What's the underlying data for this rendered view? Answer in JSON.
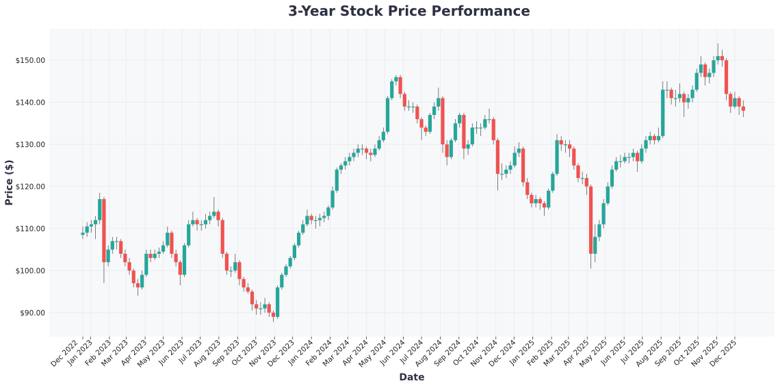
{
  "chart_data": {
    "type": "candlestick",
    "title": "3-Year Stock Price Performance",
    "xlabel": "Date",
    "ylabel": "Price ($)",
    "ylim": [
      84.3,
      157.5
    ],
    "grid": true,
    "legend": "none",
    "colors": {
      "up": "#26a69a",
      "down": "#ef5350",
      "plot_background": "#f7f8fa",
      "grid": "#e8eaee"
    },
    "yticks": [
      {
        "value": 90,
        "label": "$90.00"
      },
      {
        "value": 100,
        "label": "$100.00"
      },
      {
        "value": 110,
        "label": "$110.00"
      },
      {
        "value": 120,
        "label": "$120.00"
      },
      {
        "value": 130,
        "label": "$130.00"
      },
      {
        "value": 140,
        "label": "$140.00"
      },
      {
        "value": 150,
        "label": "$150.00"
      }
    ],
    "xticks": [
      {
        "date": "2022-12-19",
        "label": "Dec 2022"
      },
      {
        "date": "2023-01-01",
        "label": "Jan 2023"
      },
      {
        "date": "2023-02-01",
        "label": "Feb 2023"
      },
      {
        "date": "2023-03-01",
        "label": "Mar 2023"
      },
      {
        "date": "2023-04-01",
        "label": "Apr 2023"
      },
      {
        "date": "2023-05-01",
        "label": "May 2023"
      },
      {
        "date": "2023-06-01",
        "label": "Jun 2023"
      },
      {
        "date": "2023-07-01",
        "label": "Jul 2023"
      },
      {
        "date": "2023-08-01",
        "label": "Aug 2023"
      },
      {
        "date": "2023-09-01",
        "label": "Sep 2023"
      },
      {
        "date": "2023-10-01",
        "label": "Oct 2023"
      },
      {
        "date": "2023-11-01",
        "label": "Nov 2023"
      },
      {
        "date": "2023-12-01",
        "label": "Dec 2023"
      },
      {
        "date": "2024-01-01",
        "label": "Jan 2024"
      },
      {
        "date": "2024-02-01",
        "label": "Feb 2024"
      },
      {
        "date": "2024-03-01",
        "label": "Mar 2024"
      },
      {
        "date": "2024-04-01",
        "label": "Apr 2024"
      },
      {
        "date": "2024-05-01",
        "label": "May 2024"
      },
      {
        "date": "2024-06-01",
        "label": "Jun 2024"
      },
      {
        "date": "2024-07-01",
        "label": "Jul 2024"
      },
      {
        "date": "2024-08-01",
        "label": "Aug 2024"
      },
      {
        "date": "2024-09-01",
        "label": "Sep 2024"
      },
      {
        "date": "2024-10-01",
        "label": "Oct 2024"
      },
      {
        "date": "2024-11-01",
        "label": "Nov 2024"
      },
      {
        "date": "2024-12-01",
        "label": "Dec 2024"
      },
      {
        "date": "2025-01-01",
        "label": "Jan 2025"
      },
      {
        "date": "2025-02-01",
        "label": "Feb 2025"
      },
      {
        "date": "2025-03-01",
        "label": "Mar 2025"
      },
      {
        "date": "2025-04-01",
        "label": "Apr 2025"
      },
      {
        "date": "2025-05-01",
        "label": "May 2025"
      },
      {
        "date": "2025-06-01",
        "label": "Jun 2025"
      },
      {
        "date": "2025-07-01",
        "label": "Jul 2025"
      },
      {
        "date": "2025-08-01",
        "label": "Aug 2025"
      },
      {
        "date": "2025-09-01",
        "label": "Sep 2025"
      },
      {
        "date": "2025-10-01",
        "label": "Oct 2025"
      },
      {
        "date": "2025-11-01",
        "label": "Nov 2025"
      },
      {
        "date": "2025-12-01",
        "label": "Dec 2025"
      }
    ],
    "columns": [
      "date",
      "open",
      "high",
      "low",
      "close"
    ],
    "ohlc": [
      [
        "2022-12-19",
        108.5,
        110.5,
        107.5,
        109
      ],
      [
        "2022-12-26",
        109,
        111.5,
        108,
        110.5
      ],
      [
        "2023-01-02",
        110.5,
        112,
        109,
        111
      ],
      [
        "2023-01-09",
        111,
        113,
        107.5,
        112
      ],
      [
        "2023-01-16",
        112,
        118.5,
        111,
        117
      ],
      [
        "2023-01-23",
        117,
        117.5,
        97,
        102
      ],
      [
        "2023-01-30",
        102,
        106,
        101,
        105
      ],
      [
        "2023-02-06",
        105,
        108,
        104,
        107
      ],
      [
        "2023-02-13",
        107,
        108,
        105,
        107
      ],
      [
        "2023-02-20",
        107,
        107.5,
        103,
        104
      ],
      [
        "2023-02-27",
        104,
        105,
        101,
        102
      ],
      [
        "2023-03-06",
        102,
        103,
        99,
        100
      ],
      [
        "2023-03-13",
        100,
        100.5,
        96,
        97
      ],
      [
        "2023-03-20",
        97,
        98,
        94,
        96
      ],
      [
        "2023-03-27",
        96,
        100,
        95.5,
        99
      ],
      [
        "2023-04-03",
        99,
        105,
        98.5,
        104
      ],
      [
        "2023-04-10",
        104,
        105,
        102,
        103
      ],
      [
        "2023-04-17",
        103,
        105,
        102.5,
        104
      ],
      [
        "2023-04-24",
        104,
        105.5,
        103,
        104.5
      ],
      [
        "2023-05-01",
        104.5,
        107,
        104,
        106
      ],
      [
        "2023-05-08",
        106,
        110.5,
        105.5,
        109
      ],
      [
        "2023-05-15",
        109,
        109.5,
        103,
        104
      ],
      [
        "2023-05-22",
        104,
        105,
        101,
        102
      ],
      [
        "2023-05-29",
        102,
        102.5,
        96.5,
        99
      ],
      [
        "2023-06-05",
        99,
        106.5,
        98.5,
        106
      ],
      [
        "2023-06-12",
        106,
        112,
        105.5,
        111
      ],
      [
        "2023-06-19",
        111,
        114,
        110.5,
        112
      ],
      [
        "2023-06-26",
        112,
        112.5,
        109.5,
        111
      ],
      [
        "2023-07-03",
        111,
        112,
        109.5,
        111
      ],
      [
        "2023-07-10",
        111,
        113.5,
        110,
        112
      ],
      [
        "2023-07-17",
        112,
        114,
        111,
        113
      ],
      [
        "2023-07-24",
        113,
        117.5,
        112.5,
        114
      ],
      [
        "2023-07-31",
        114,
        114.5,
        110.5,
        112
      ],
      [
        "2023-08-07",
        112,
        112.5,
        103,
        104
      ],
      [
        "2023-08-14",
        104,
        104.5,
        99,
        100
      ],
      [
        "2023-08-21",
        100,
        101,
        98.5,
        100
      ],
      [
        "2023-08-28",
        100,
        104,
        99.5,
        102
      ],
      [
        "2023-09-04",
        102,
        102.5,
        96.5,
        98
      ],
      [
        "2023-09-11",
        98,
        98.5,
        95,
        96
      ],
      [
        "2023-09-18",
        96,
        97,
        94.5,
        95
      ],
      [
        "2023-09-25",
        95,
        95.5,
        90.5,
        92
      ],
      [
        "2023-10-02",
        92,
        93,
        89.5,
        91
      ],
      [
        "2023-10-09",
        91,
        92.5,
        89.5,
        91
      ],
      [
        "2023-10-16",
        91,
        93.5,
        90,
        92
      ],
      [
        "2023-10-23",
        92,
        92.5,
        89,
        90
      ],
      [
        "2023-10-30",
        90,
        90.5,
        87.8,
        89
      ],
      [
        "2023-11-06",
        89,
        96.5,
        88.5,
        96
      ],
      [
        "2023-11-13",
        96,
        99.5,
        95.5,
        99
      ],
      [
        "2023-11-20",
        99,
        101.5,
        98.5,
        101
      ],
      [
        "2023-11-27",
        101,
        103.5,
        100.5,
        103
      ],
      [
        "2023-12-04",
        103,
        106.5,
        102.5,
        106
      ],
      [
        "2023-12-11",
        106,
        109.5,
        105.5,
        109
      ],
      [
        "2023-12-18",
        109,
        112,
        108.5,
        111
      ],
      [
        "2023-12-25",
        111,
        114.5,
        110.5,
        113
      ],
      [
        "2024-01-01",
        113,
        113.5,
        111,
        112
      ],
      [
        "2024-01-08",
        112,
        113,
        110,
        112
      ],
      [
        "2024-01-15",
        112,
        113.5,
        110.5,
        112.5
      ],
      [
        "2024-01-22",
        112.5,
        114,
        111.5,
        113
      ],
      [
        "2024-01-29",
        113,
        115.5,
        112,
        115
      ],
      [
        "2024-02-05",
        115,
        120,
        114.5,
        119
      ],
      [
        "2024-02-12",
        119,
        124.5,
        118.5,
        124
      ],
      [
        "2024-02-19",
        124,
        125.5,
        123,
        125
      ],
      [
        "2024-02-26",
        125,
        127,
        124,
        126
      ],
      [
        "2024-03-04",
        126,
        128,
        125,
        127
      ],
      [
        "2024-03-11",
        127,
        129,
        126,
        128
      ],
      [
        "2024-03-18",
        128,
        130,
        127,
        129
      ],
      [
        "2024-03-25",
        129,
        130,
        127.5,
        129
      ],
      [
        "2024-04-01",
        129,
        129.5,
        126.5,
        128
      ],
      [
        "2024-04-08",
        128,
        129,
        126,
        127.5
      ],
      [
        "2024-04-15",
        127.5,
        130,
        127,
        129
      ],
      [
        "2024-04-22",
        129,
        132,
        128.5,
        131
      ],
      [
        "2024-04-29",
        131,
        134,
        130.5,
        133
      ],
      [
        "2024-05-06",
        133,
        141.5,
        132.5,
        141
      ],
      [
        "2024-05-13",
        141,
        145.5,
        140.5,
        145
      ],
      [
        "2024-05-20",
        145,
        146.5,
        144,
        146
      ],
      [
        "2024-05-27",
        146,
        146.5,
        141,
        142
      ],
      [
        "2024-06-03",
        142,
        142.5,
        138,
        139
      ],
      [
        "2024-06-10",
        139,
        140.5,
        138,
        139
      ],
      [
        "2024-06-17",
        139,
        140,
        137.5,
        139
      ],
      [
        "2024-06-24",
        139,
        139.5,
        135,
        136
      ],
      [
        "2024-07-01",
        136,
        136.5,
        131,
        134
      ],
      [
        "2024-07-08",
        134,
        134.5,
        132,
        133
      ],
      [
        "2024-07-15",
        133,
        137.5,
        132.5,
        137
      ],
      [
        "2024-07-22",
        137,
        140,
        136,
        139
      ],
      [
        "2024-07-29",
        139,
        143.5,
        138,
        141
      ],
      [
        "2024-08-05",
        141,
        141.5,
        128,
        130
      ],
      [
        "2024-08-12",
        130,
        131,
        125,
        127
      ],
      [
        "2024-08-19",
        127,
        131.5,
        126.5,
        131
      ],
      [
        "2024-08-26",
        131,
        136,
        130.5,
        135
      ],
      [
        "2024-09-02",
        135,
        137.5,
        134,
        137
      ],
      [
        "2024-09-09",
        137,
        137.5,
        126.5,
        129
      ],
      [
        "2024-09-16",
        129,
        131,
        127.5,
        130
      ],
      [
        "2024-09-23",
        130,
        135,
        129.5,
        134
      ],
      [
        "2024-09-30",
        134,
        135.5,
        132.5,
        134
      ],
      [
        "2024-10-07",
        134,
        135,
        132,
        134
      ],
      [
        "2024-10-14",
        134,
        137,
        133.5,
        136
      ],
      [
        "2024-10-21",
        136,
        138.5,
        135,
        136
      ],
      [
        "2024-10-28",
        136,
        136.5,
        130,
        131
      ],
      [
        "2024-11-04",
        131,
        131.5,
        119,
        123
      ],
      [
        "2024-11-11",
        123,
        125.5,
        121.5,
        123
      ],
      [
        "2024-11-18",
        123,
        125,
        122,
        124
      ],
      [
        "2024-11-25",
        124,
        126,
        123,
        125
      ],
      [
        "2024-12-02",
        125,
        129.5,
        124.5,
        128
      ],
      [
        "2024-12-09",
        128,
        130.5,
        127,
        129
      ],
      [
        "2024-12-16",
        129,
        129.5,
        120,
        121
      ],
      [
        "2024-12-23",
        121,
        122,
        117,
        118
      ],
      [
        "2024-12-30",
        118,
        118.5,
        115,
        116
      ],
      [
        "2025-01-06",
        116,
        118,
        115,
        117
      ],
      [
        "2025-01-13",
        117,
        117.5,
        114.5,
        116
      ],
      [
        "2025-01-20",
        116,
        116.5,
        113,
        115
      ],
      [
        "2025-01-27",
        115,
        119.5,
        114.5,
        119
      ],
      [
        "2025-02-03",
        119,
        123.5,
        118.5,
        123
      ],
      [
        "2025-02-10",
        123,
        132.5,
        122.5,
        131
      ],
      [
        "2025-02-17",
        131,
        132,
        128.5,
        130
      ],
      [
        "2025-02-24",
        130,
        131,
        128,
        130
      ],
      [
        "2025-03-03",
        130,
        131,
        127,
        129
      ],
      [
        "2025-03-10",
        129,
        129.5,
        124,
        125
      ],
      [
        "2025-03-17",
        125,
        125.5,
        121,
        122
      ],
      [
        "2025-03-24",
        122,
        123.5,
        120.5,
        122
      ],
      [
        "2025-03-31",
        122,
        123,
        118,
        120
      ],
      [
        "2025-04-07",
        120,
        120.5,
        100.5,
        104
      ],
      [
        "2025-04-14",
        104,
        111,
        102,
        108
      ],
      [
        "2025-04-21",
        108,
        112,
        107,
        111
      ],
      [
        "2025-04-28",
        111,
        117,
        110,
        116
      ],
      [
        "2025-05-05",
        116,
        121,
        115.5,
        120
      ],
      [
        "2025-05-12",
        120,
        125,
        119.5,
        124
      ],
      [
        "2025-05-19",
        124,
        127,
        123.5,
        126
      ],
      [
        "2025-05-26",
        126,
        127.5,
        124.5,
        126
      ],
      [
        "2025-06-02",
        126,
        128,
        125.5,
        127
      ],
      [
        "2025-06-09",
        127,
        128,
        125.5,
        127
      ],
      [
        "2025-06-16",
        127,
        129,
        126,
        128
      ],
      [
        "2025-06-23",
        128,
        128.5,
        123.5,
        126
      ],
      [
        "2025-06-30",
        126,
        130,
        125.5,
        129
      ],
      [
        "2025-07-07",
        129,
        132,
        128,
        131
      ],
      [
        "2025-07-14",
        131,
        133,
        130,
        132
      ],
      [
        "2025-07-21",
        132,
        132.5,
        130,
        131
      ],
      [
        "2025-07-28",
        131,
        134,
        130.5,
        132
      ],
      [
        "2025-08-04",
        132,
        145,
        131.5,
        143
      ],
      [
        "2025-08-11",
        143,
        145,
        141,
        143
      ],
      [
        "2025-08-18",
        143,
        143.5,
        139.5,
        141
      ],
      [
        "2025-08-25",
        141,
        143,
        139,
        141
      ],
      [
        "2025-09-01",
        141,
        144.5,
        140,
        142
      ],
      [
        "2025-09-08",
        142,
        142.5,
        136.5,
        140
      ],
      [
        "2025-09-15",
        140,
        142,
        138.5,
        141
      ],
      [
        "2025-09-22",
        141,
        144,
        140,
        143
      ],
      [
        "2025-09-29",
        143,
        148,
        142.5,
        147
      ],
      [
        "2025-10-06",
        147,
        151,
        146,
        149
      ],
      [
        "2025-10-13",
        149,
        149.5,
        144,
        146
      ],
      [
        "2025-10-20",
        146,
        148,
        144.5,
        147
      ],
      [
        "2025-10-27",
        147,
        151,
        146,
        150
      ],
      [
        "2025-11-03",
        150,
        154,
        149,
        151
      ],
      [
        "2025-11-10",
        151,
        152.5,
        148.5,
        150
      ],
      [
        "2025-11-17",
        150,
        150.5,
        140.5,
        142
      ],
      [
        "2025-11-24",
        142,
        142.5,
        137.5,
        139
      ],
      [
        "2025-12-01",
        139,
        142.5,
        138.5,
        141
      ],
      [
        "2025-12-08",
        141,
        141.5,
        137,
        139
      ],
      [
        "2025-12-15",
        139,
        140.5,
        136.5,
        138
      ]
    ]
  }
}
